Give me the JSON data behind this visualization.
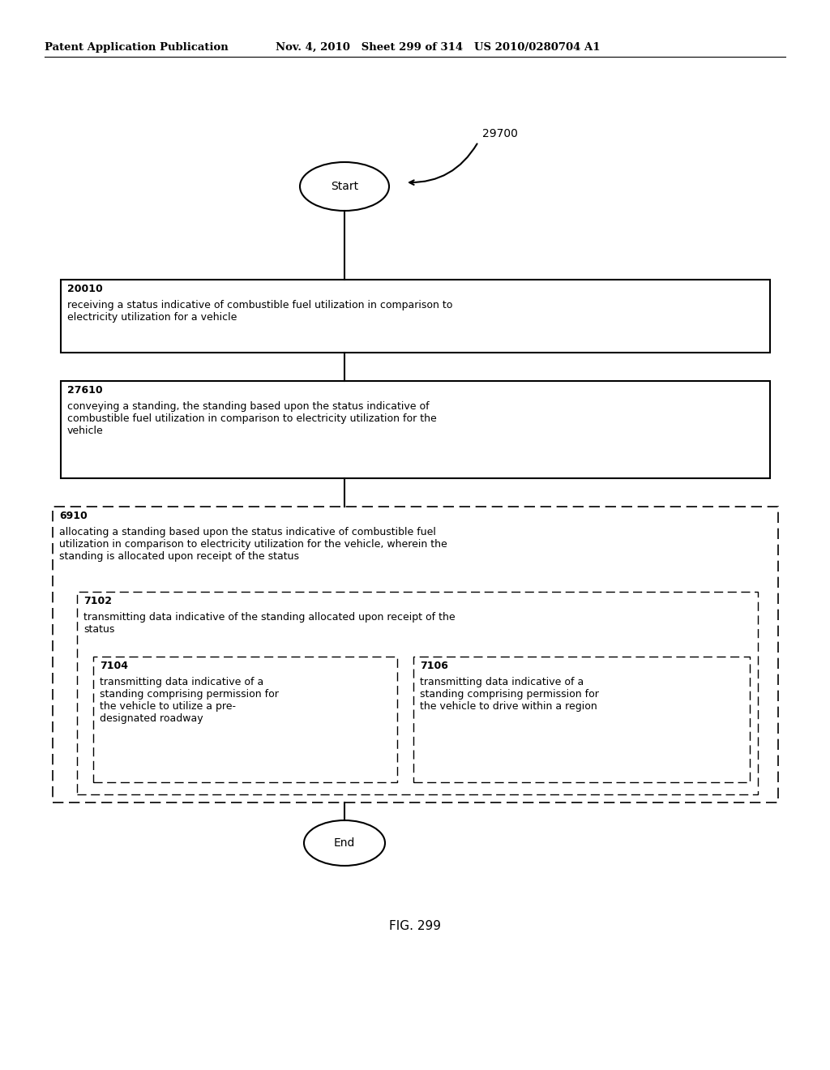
{
  "header_left": "Patent Application Publication",
  "header_middle": "Nov. 4, 2010   Sheet 299 of 314   US 2010/0280704 A1",
  "fig_label": "FIG. 299",
  "diagram_id": "29700",
  "start_label": "Start",
  "end_label": "End",
  "box1_id": "20010",
  "box1_text": "receiving a status indicative of combustible fuel utilization in comparison to\nelectricity utilization for a vehicle",
  "box2_id": "27610",
  "box2_text": "conveying a standing, the standing based upon the status indicative of\ncombustible fuel utilization in comparison to electricity utilization for the\nvehicle",
  "outer_dashed_id": "6910",
  "outer_dashed_text": "allocating a standing based upon the status indicative of combustible fuel\nutilization in comparison to electricity utilization for the vehicle, wherein the\nstanding is allocated upon receipt of the status",
  "inner_dashed_id": "7102",
  "inner_dashed_text": "transmitting data indicative of the standing allocated upon receipt of the\nstatus",
  "box_left_id": "7104",
  "box_left_text": "transmitting data indicative of a\nstanding comprising permission for\nthe vehicle to utilize a pre-\ndesignated roadway",
  "box_right_id": "7106",
  "box_right_text": "transmitting data indicative of a\nstanding comprising permission for\nthe vehicle to drive within a region",
  "bg_color": "#ffffff",
  "text_color": "#000000"
}
